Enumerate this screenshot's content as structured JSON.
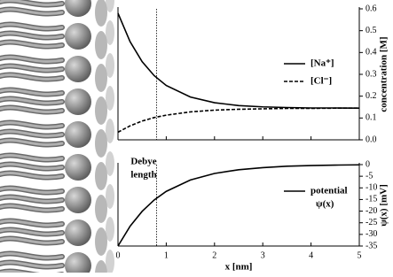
{
  "chart_data": [
    {
      "type": "line",
      "x": [
        0,
        0.25,
        0.5,
        0.75,
        1,
        1.5,
        2,
        2.5,
        3,
        3.5,
        4,
        4.5,
        5
      ],
      "xlim": [
        0,
        5
      ],
      "ylim": [
        0,
        0.6
      ],
      "yticks": [
        {
          "value": 0,
          "label": "0.0"
        },
        0.1,
        0.2,
        0.3,
        0.4,
        0.5,
        0.6
      ],
      "ylabel": "concentration [M]",
      "series": [
        {
          "name": "[Na⁺]",
          "color": "#000000",
          "dash": "solid",
          "values": [
            0.58,
            0.45,
            0.358,
            0.294,
            0.249,
            0.196,
            0.17,
            0.157,
            0.151,
            0.148,
            0.146,
            0.146,
            0.145
          ]
        },
        {
          "name": "[Cl⁻]",
          "color": "#000000",
          "dash": "dashed",
          "values": [
            0.035,
            0.064,
            0.086,
            0.102,
            0.113,
            0.128,
            0.136,
            0.14,
            0.142,
            0.144,
            0.144,
            0.145,
            0.145
          ]
        }
      ]
    },
    {
      "type": "line",
      "x": [
        0,
        0.25,
        0.5,
        0.75,
        1,
        1.5,
        2,
        2.5,
        3,
        3.5,
        4,
        4.5,
        5
      ],
      "xlim": [
        0,
        5
      ],
      "xticks": [
        0,
        1,
        2,
        3,
        4,
        5
      ],
      "xlabel": "x [nm]",
      "ylim": [
        -35,
        0
      ],
      "yticks": [
        0,
        -5,
        -10,
        -15,
        -20,
        -25,
        -30,
        -35
      ],
      "ylabel": "ψ(x) [mV]",
      "series": [
        {
          "name": "potential",
          "subname": "ψ(x)",
          "color": "#000000",
          "dash": "solid",
          "values": [
            -35,
            -26.5,
            -20.1,
            -15.2,
            -11.5,
            -6.6,
            -3.8,
            -2.2,
            -1.3,
            -0.7,
            -0.4,
            -0.2,
            -0.1
          ]
        }
      ]
    }
  ],
  "debye": {
    "label": [
      "Debye",
      "length"
    ],
    "x": 0.8
  }
}
